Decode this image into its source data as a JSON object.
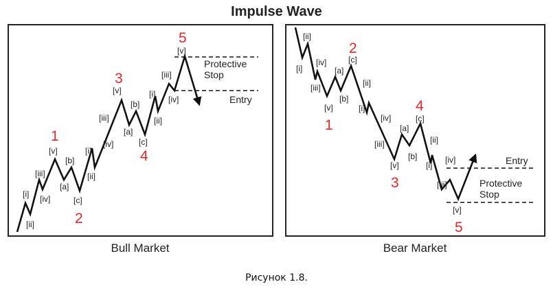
{
  "title": "Impulse Wave",
  "caption": "Рисунок 1.8.",
  "colors": {
    "wave_number": "#e0282a",
    "line": "#111111",
    "frame": "#222222",
    "text": "#222222"
  },
  "bull": {
    "subtitle": "Bull Market",
    "protective_stop": [
      "Protective",
      "Stop"
    ],
    "entry": "Entry",
    "numbers": [
      "1",
      "2",
      "3",
      "4",
      "5"
    ],
    "labels": [
      "[i]",
      "[ii]",
      "[iii]",
      "[iv]",
      "[v]",
      "[a]",
      "[b]",
      "[c]",
      "[i]",
      "[ii]",
      "[iii]",
      "[iv]",
      "[v]",
      "[a]",
      "[b]",
      "[c]",
      "[i]",
      "[ii]",
      "[iii]",
      "[iv]",
      "[v]"
    ]
  },
  "bear": {
    "subtitle": "Bear Market",
    "protective_stop": [
      "Protective",
      "Stop"
    ],
    "entry": "Entry",
    "numbers": [
      "2",
      "1",
      "4",
      "3",
      "5"
    ],
    "labels": [
      "[ii]",
      "[i]",
      "[iv]",
      "[iii]",
      "[v]",
      "[c]",
      "[a]",
      "[b]",
      "[ii]",
      "[i]",
      "[iv]",
      "[iii]",
      "[v]",
      "[c]",
      "[a]",
      "[b]",
      "[ii]",
      "[i]",
      "[iv]",
      "[iii]",
      "[v]"
    ]
  }
}
